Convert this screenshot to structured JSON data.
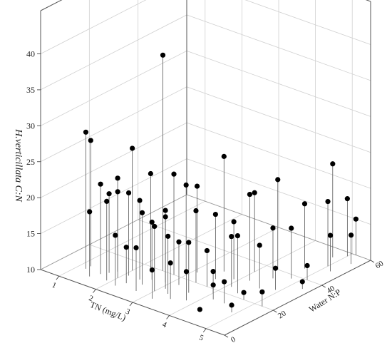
{
  "chart_data": {
    "type": "scatter3d",
    "x_label": "TN (mg/L)",
    "y_label": "Water N:P",
    "z_label": "H.verticillata C:N",
    "color": "#000000",
    "xlim": [
      0.5,
      5.5
    ],
    "ylim": [
      0,
      60
    ],
    "zlim": [
      10,
      46
    ],
    "xticks": [
      1,
      2,
      3,
      4,
      5
    ],
    "yticks": [
      0,
      20,
      40,
      60
    ],
    "zticks": [
      10,
      15,
      20,
      25,
      30,
      35,
      40
    ],
    "x": [
      1.2,
      1.2,
      1.5,
      1.6,
      1.7,
      1.8,
      1.9,
      2.0,
      2.1,
      2.0,
      2.2,
      2.3,
      2.4,
      2.5,
      2.3,
      2.6,
      2.6,
      2.7,
      2.8,
      2.9,
      3.0,
      3.0,
      3.1,
      3.1,
      3.2,
      3.2,
      3.3,
      3.4,
      3.5,
      3.5,
      3.6,
      3.6,
      3.7,
      3.8,
      3.9,
      4.0,
      4.0,
      4.1,
      4.2,
      4.2,
      4.3,
      4.3,
      4.4,
      4.5,
      4.5,
      4.6,
      4.7,
      4.7,
      4.8,
      4.9,
      4.8,
      4.9,
      5.0,
      5.0,
      5.1,
      5.2,
      5.3,
      5.2,
      5.3,
      5.1
    ],
    "y": [
      8,
      10,
      5,
      8,
      10,
      12,
      6,
      9,
      12,
      15,
      5,
      8,
      12,
      20,
      18,
      10,
      14,
      6,
      20,
      15,
      9,
      22,
      12,
      25,
      5,
      16,
      10,
      20,
      8,
      30,
      14,
      25,
      20,
      10,
      28,
      18,
      35,
      24,
      30,
      15,
      40,
      8,
      22,
      35,
      15,
      28,
      45,
      20,
      38,
      30,
      55,
      12,
      50,
      58,
      40,
      20,
      55,
      48,
      35,
      60
    ],
    "z": [
      29,
      27.5,
      19,
      22.5,
      21,
      23,
      21,
      22,
      21.5,
      27,
      17,
      15,
      21,
      40,
      23.5,
      20,
      18,
      16,
      24,
      20,
      19,
      22.5,
      20,
      22,
      14,
      16,
      18,
      20,
      15,
      26,
      17,
      19,
      15,
      14,
      18,
      13,
      21,
      17,
      22,
      12,
      22.5,
      10,
      18,
      17,
      13,
      16,
      19,
      11,
      17,
      13,
      23,
      11,
      19,
      18,
      12,
      12,
      14,
      15,
      11,
      15
    ]
  }
}
